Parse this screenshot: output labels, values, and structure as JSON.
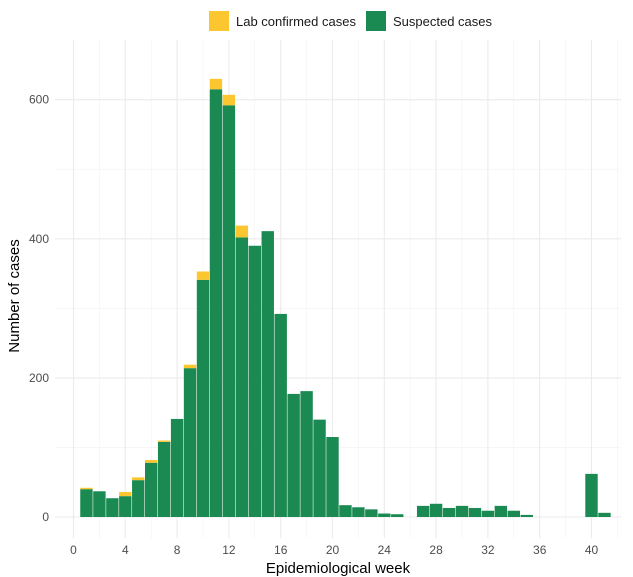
{
  "chart_data": {
    "type": "bar",
    "stacked": true,
    "xlabel": "Epidemiological week",
    "ylabel": "Number of cases",
    "xlim": [
      0,
      42
    ],
    "ylim": [
      0,
      660
    ],
    "x_ticks": [
      0,
      4,
      8,
      12,
      16,
      20,
      24,
      28,
      32,
      36,
      40
    ],
    "y_ticks": [
      0,
      200,
      400,
      600
    ],
    "grid": true,
    "legend_position": "top",
    "x": [
      1,
      2,
      3,
      4,
      5,
      6,
      7,
      8,
      9,
      10,
      11,
      12,
      13,
      14,
      15,
      16,
      17,
      18,
      19,
      20,
      21,
      22,
      23,
      24,
      25,
      26,
      27,
      28,
      29,
      30,
      31,
      32,
      33,
      34,
      35,
      36,
      37,
      38,
      39,
      40,
      41
    ],
    "series": [
      {
        "name": "Suspected cases",
        "color": "#1a8a52",
        "values": [
          40,
          37,
          27,
          30,
          53,
          78,
          108,
          141,
          214,
          341,
          615,
          592,
          402,
          390,
          411,
          292,
          177,
          181,
          140,
          115,
          17,
          14,
          11,
          5,
          4,
          0,
          16,
          19,
          13,
          16,
          13,
          9,
          16,
          9,
          3,
          0,
          0,
          0,
          0,
          62,
          6
        ]
      },
      {
        "name": "Lab confirmed cases",
        "color": "#fcc630",
        "values": [
          2,
          0,
          0,
          6,
          4,
          4,
          2,
          0,
          5,
          12,
          15,
          15,
          17,
          0,
          0,
          0,
          0,
          0,
          0,
          0,
          0,
          0,
          0,
          0,
          0,
          0,
          0,
          0,
          0,
          0,
          0,
          0,
          0,
          0,
          0,
          0,
          0,
          0,
          0,
          0,
          0
        ]
      }
    ]
  }
}
